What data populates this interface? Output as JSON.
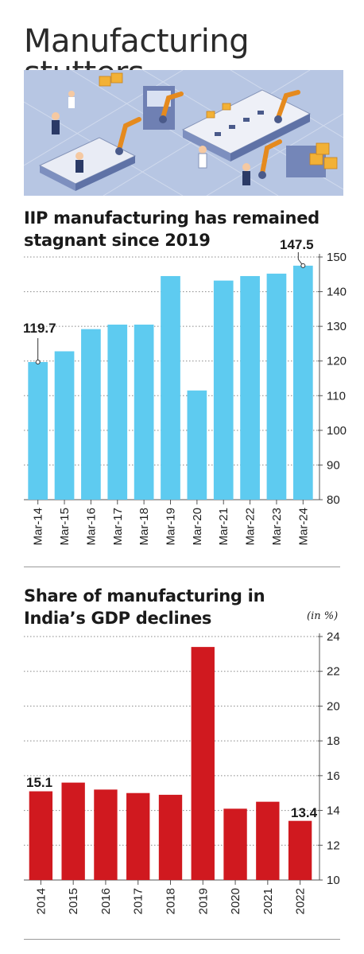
{
  "page": {
    "title": "Manufacturing stutters"
  },
  "illustration": {
    "icon": "factory-robots-illustration"
  },
  "chart_data": [
    {
      "type": "bar",
      "title": "IIP manufacturing has remained stagnant since 2019",
      "categories": [
        "Mar-14",
        "Mar-15",
        "Mar-16",
        "Mar-17",
        "Mar-18",
        "Mar-19",
        "Mar-20",
        "Mar-21",
        "Mar-22",
        "Mar-23",
        "Mar-24"
      ],
      "values": [
        119.7,
        122.8,
        129.2,
        130.5,
        130.5,
        144.5,
        111.5,
        143.2,
        144.5,
        145.2,
        147.5
      ],
      "ylim": [
        80,
        150
      ],
      "yticks": [
        "80",
        "90",
        "100",
        "110",
        "120",
        "130",
        "140",
        "150"
      ],
      "annotations": [
        {
          "category": "Mar-14",
          "text": "119.7"
        },
        {
          "category": "Mar-24",
          "text": "147.5"
        }
      ],
      "color": "#5ecbf0",
      "grid": true,
      "axis_position": "right"
    },
    {
      "type": "bar",
      "title": "Share of manufacturing in India’s GDP declines",
      "unit": "(in %)",
      "categories": [
        "2014",
        "2015",
        "2016",
        "2017",
        "2018",
        "2019",
        "2020",
        "2021",
        "2022"
      ],
      "values": [
        15.1,
        15.6,
        15.2,
        15.0,
        14.9,
        23.4,
        14.1,
        14.5,
        13.4
      ],
      "ylim": [
        10,
        24
      ],
      "yticks": [
        "10",
        "12",
        "14",
        "16",
        "18",
        "20",
        "22",
        "24"
      ],
      "annotations": [
        {
          "category": "2014",
          "text": "15.1"
        },
        {
          "category": "2022",
          "text": "13.4"
        }
      ],
      "color": "#d0191f",
      "grid": true,
      "axis_position": "right"
    }
  ]
}
